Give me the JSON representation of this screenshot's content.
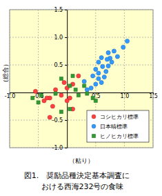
{
  "chart_data": {
    "type": "scatter",
    "title": "図1.　奨励品種決定基本調査に\nおける西海232号の食味",
    "x_label": "（粘り）",
    "y_label": "（総合）",
    "xlim": [
      -1.0,
      1.5
    ],
    "ylim": [
      -1.0,
      1.5
    ],
    "xticks": [
      {
        "value": -1.0,
        "label": "-1.0"
      },
      {
        "value": -0.5,
        "label": "-0.5"
      },
      {
        "value": 0.5,
        "label": "0.5"
      },
      {
        "value": 1.0,
        "label": "1.0"
      },
      {
        "value": 1.5,
        "label": "1.5"
      }
    ],
    "yticks": [
      {
        "value": -1.0,
        "label": "-1.0"
      },
      {
        "value": -0.5,
        "label": "-0.5"
      },
      {
        "value": 0.5,
        "label": "0.5"
      },
      {
        "value": 1.0,
        "label": "1.0"
      },
      {
        "value": 1.5,
        "label": "1.5"
      }
    ],
    "grid": true,
    "legend": "lower right",
    "series": [
      {
        "name": "コシヒカリ標準",
        "color": "#ff4040",
        "marker": "circle",
        "x": [
          -0.55,
          -0.3,
          -0.2,
          -0.1,
          -0.05,
          0.0,
          0.05,
          0.1,
          -0.4,
          -0.25,
          -0.3,
          0.0,
          0.2,
          0.1,
          -0.35
        ],
        "values": [
          0.02,
          -0.1,
          0.05,
          -0.05,
          0.18,
          0.08,
          -0.1,
          0.15,
          -0.15,
          -0.25,
          -0.45,
          -0.15,
          0.3,
          -0.3,
          -0.1
        ]
      },
      {
        "name": "日本晴標準",
        "color": "#3399ff",
        "marker": "circle",
        "x": [
          1.05,
          0.98,
          0.72,
          0.6,
          0.75,
          0.78,
          0.7,
          0.55,
          0.72,
          0.62,
          0.5,
          0.68,
          0.55,
          0.45,
          0.65,
          0.55,
          0.6,
          0.5,
          0.42,
          0.3,
          0.35,
          0.88,
          0.82
        ],
        "values": [
          0.93,
          0.82,
          0.72,
          0.63,
          0.62,
          0.55,
          0.6,
          0.55,
          0.48,
          0.47,
          0.42,
          0.38,
          0.35,
          0.3,
          0.28,
          0.25,
          0.18,
          0.15,
          0.08,
          0.2,
          0.05,
          0.65,
          0.75
        ]
      },
      {
        "name": "ヒノヒカリ標準",
        "color": "#339933",
        "marker": "square",
        "x": [
          -0.6,
          -0.5,
          -0.45,
          -0.2,
          -0.1,
          0.05,
          0.1,
          0.15,
          0.3,
          0.35,
          0.5,
          0.05,
          -0.1,
          0.2,
          0.45
        ],
        "values": [
          -0.1,
          -0.18,
          -0.05,
          -0.02,
          0.25,
          0.12,
          0.3,
          0.05,
          0.12,
          -0.02,
          -0.15,
          -0.3,
          -0.35,
          -0.05,
          -0.1
        ]
      }
    ]
  }
}
